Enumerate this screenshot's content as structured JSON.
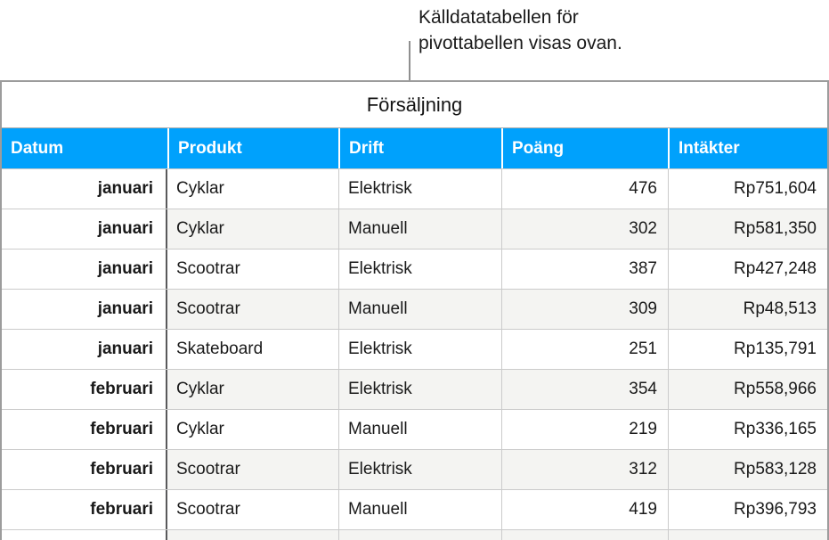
{
  "callout": {
    "line1": "Källdatatabellen för",
    "line2": "pivottabellen visas ovan."
  },
  "table": {
    "title": "Försäljning",
    "columns": [
      "Datum",
      "Produkt",
      "Drift",
      "Poäng",
      "Intäkter"
    ],
    "rows": [
      [
        "januari",
        "Cyklar",
        "Elektrisk",
        "476",
        "Rp751,604"
      ],
      [
        "januari",
        "Cyklar",
        "Manuell",
        "302",
        "Rp581,350"
      ],
      [
        "januari",
        "Scootrar",
        "Elektrisk",
        "387",
        "Rp427,248"
      ],
      [
        "januari",
        "Scootrar",
        "Manuell",
        "309",
        "Rp48,513"
      ],
      [
        "januari",
        "Skateboard",
        "Elektrisk",
        "251",
        "Rp135,791"
      ],
      [
        "februari",
        "Cyklar",
        "Elektrisk",
        "354",
        "Rp558,966"
      ],
      [
        "februari",
        "Cyklar",
        "Manuell",
        "219",
        "Rp336,165"
      ],
      [
        "februari",
        "Scootrar",
        "Elektrisk",
        "312",
        "Rp583,128"
      ],
      [
        "februari",
        "Scootrar",
        "Manuell",
        "419",
        "Rp396,793"
      ]
    ]
  },
  "colors": {
    "header_bg": "#00A1FC",
    "header_text": "#FFFFFF",
    "alt_row_bg": "#F4F4F2",
    "grid_line": "#CBCBCB",
    "outer_border": "#9C9C9C",
    "title_divider": "#ABABAB",
    "dark_column_divider": "#59595B",
    "leader_line": "#8F8F8F",
    "text": "#1A1A1A"
  }
}
